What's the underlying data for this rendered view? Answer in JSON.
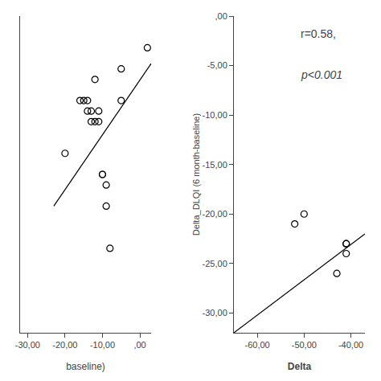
{
  "chart_data": [
    {
      "type": "scatter",
      "xlabel": "baseline)",
      "series": [
        {
          "type": "scatter",
          "marker": "circle-open",
          "color": "#000000",
          "x": [
            -20,
            -16,
            -15,
            -14,
            -14,
            -13,
            -13,
            -12,
            -12,
            -11,
            -11,
            -10,
            -10,
            -9,
            -9,
            -8,
            -5,
            -5,
            2
          ],
          "values": [
            -13,
            -8,
            -8,
            -8,
            -9,
            -9,
            -10,
            -10,
            -6,
            -10,
            -9,
            -15,
            -15,
            -16,
            -18,
            -22,
            -5,
            -8,
            -3
          ]
        },
        {
          "type": "line",
          "color": "#000000",
          "x": [
            -23,
            3
          ],
          "values": [
            -18.0,
            -4.5
          ]
        }
      ],
      "xlim": [
        -32,
        3
      ],
      "xticks": [
        {
          "value": -30,
          "label": "-30,00"
        },
        {
          "value": -20,
          "label": "-20,00"
        },
        {
          "value": -10,
          "label": "-10,00"
        },
        {
          "value": 0,
          "label": ",00"
        }
      ],
      "ylim": [
        -30,
        0
      ],
      "yticks": [],
      "tick_labels": "x",
      "grid": false
    },
    {
      "type": "scatter",
      "xlabel": "Delta",
      "ylabel": "Delta_DLQI (6 month-baseline)",
      "annotations": [
        "r=0.58,",
        "p<0.001"
      ],
      "series": [
        {
          "type": "scatter",
          "marker": "circle-open",
          "color": "#000000",
          "x": [
            -52,
            -50,
            -43,
            -41,
            -41,
            -41
          ],
          "values": [
            -21,
            -20,
            -26,
            -23,
            -24,
            -23
          ]
        },
        {
          "type": "line",
          "color": "#000000",
          "x": [
            -65,
            -37
          ],
          "values": [
            -32.0,
            -22.0
          ]
        }
      ],
      "xlim": [
        -65,
        -37
      ],
      "xticks": [
        {
          "value": -60,
          "label": "-60,00"
        },
        {
          "value": -50,
          "label": "-50,00"
        },
        {
          "value": -40,
          "label": "-40,00"
        }
      ],
      "ylim": [
        -32,
        0
      ],
      "yticks": [
        {
          "value": 0,
          "label": ",00"
        },
        {
          "value": -5,
          "label": "-5,00"
        },
        {
          "value": -10,
          "label": "-10,00"
        },
        {
          "value": -15,
          "label": "-15,00"
        },
        {
          "value": -20,
          "label": "-20,00"
        },
        {
          "value": -25,
          "label": "-25,00"
        },
        {
          "value": -30,
          "label": "-30,00"
        }
      ],
      "grid": false
    }
  ]
}
